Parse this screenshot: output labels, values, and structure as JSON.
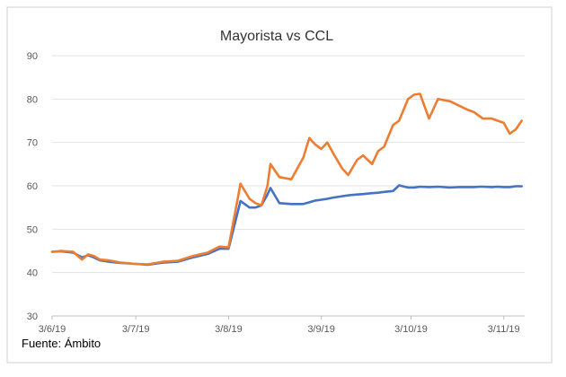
{
  "source_note": "Fuente: Ámbito",
  "chart_data": {
    "type": "line",
    "title": "Mayorista vs CCL",
    "xlabel": "",
    "ylabel": "",
    "ylim": [
      30,
      90
    ],
    "yticks": [
      30,
      40,
      50,
      60,
      70,
      80,
      90
    ],
    "xtick_labels": [
      "3/6/19",
      "3/7/19",
      "3/8/19",
      "3/9/19",
      "3/10/19",
      "3/11/19"
    ],
    "xlim": [
      "2019-06-03",
      "2019-11-08"
    ],
    "grid": true,
    "legend": "none",
    "x": [
      "2019-06-03",
      "2019-06-06",
      "2019-06-10",
      "2019-06-13",
      "2019-06-15",
      "2019-06-17",
      "2019-06-19",
      "2019-06-22",
      "2019-06-26",
      "2019-07-01",
      "2019-07-05",
      "2019-07-10",
      "2019-07-15",
      "2019-07-20",
      "2019-07-25",
      "2019-07-29",
      "2019-08-01",
      "2019-08-05",
      "2019-08-08",
      "2019-08-10",
      "2019-08-12",
      "2019-08-14",
      "2019-08-15",
      "2019-08-18",
      "2019-08-22",
      "2019-08-26",
      "2019-08-28",
      "2019-08-30",
      "2019-09-01",
      "2019-09-03",
      "2019-09-05",
      "2019-09-08",
      "2019-09-10",
      "2019-09-13",
      "2019-09-15",
      "2019-09-18",
      "2019-09-20",
      "2019-09-22",
      "2019-09-25",
      "2019-09-27",
      "2019-09-30",
      "2019-10-02",
      "2019-10-04",
      "2019-10-07",
      "2019-10-10",
      "2019-10-14",
      "2019-10-17",
      "2019-10-20",
      "2019-10-22",
      "2019-10-24",
      "2019-10-25",
      "2019-10-28",
      "2019-10-30",
      "2019-11-01",
      "2019-11-03",
      "2019-11-05",
      "2019-11-07"
    ],
    "series": [
      {
        "color": "#4472C4",
        "values": [
          44.8,
          44.9,
          44.6,
          43.5,
          44.0,
          43.5,
          42.8,
          42.5,
          42.2,
          42.0,
          41.8,
          42.3,
          42.5,
          43.5,
          44.3,
          45.5,
          45.5,
          56.5,
          55.0,
          55.0,
          55.5,
          58.0,
          59.5,
          56.0,
          55.8,
          55.8,
          56.2,
          56.6,
          56.8,
          57.0,
          57.3,
          57.6,
          57.8,
          58.0,
          58.1,
          58.3,
          58.4,
          58.6,
          58.8,
          60.1,
          59.6,
          59.6,
          59.8,
          59.7,
          59.8,
          59.6,
          59.7,
          59.7,
          59.7,
          59.8,
          59.8,
          59.7,
          59.8,
          59.7,
          59.7,
          59.9,
          59.9
        ]
      },
      {
        "color": "#ED7D31",
        "values": [
          44.8,
          45.0,
          44.8,
          43.0,
          44.2,
          43.8,
          43.0,
          42.8,
          42.3,
          42.0,
          41.9,
          42.5,
          42.7,
          43.8,
          44.6,
          46.0,
          45.8,
          60.5,
          57.0,
          56.0,
          55.5,
          60.0,
          65.0,
          62.0,
          61.5,
          66.5,
          71.0,
          69.5,
          68.5,
          70.0,
          67.5,
          64.0,
          62.5,
          66.0,
          67.0,
          65.0,
          68.0,
          69.0,
          74.0,
          75.0,
          80.0,
          81.0,
          81.2,
          75.5,
          80.0,
          79.5,
          78.5,
          77.5,
          77.0,
          76.0,
          75.5,
          75.5,
          75.0,
          74.5,
          72.0,
          73.0,
          75.0
        ]
      }
    ]
  }
}
